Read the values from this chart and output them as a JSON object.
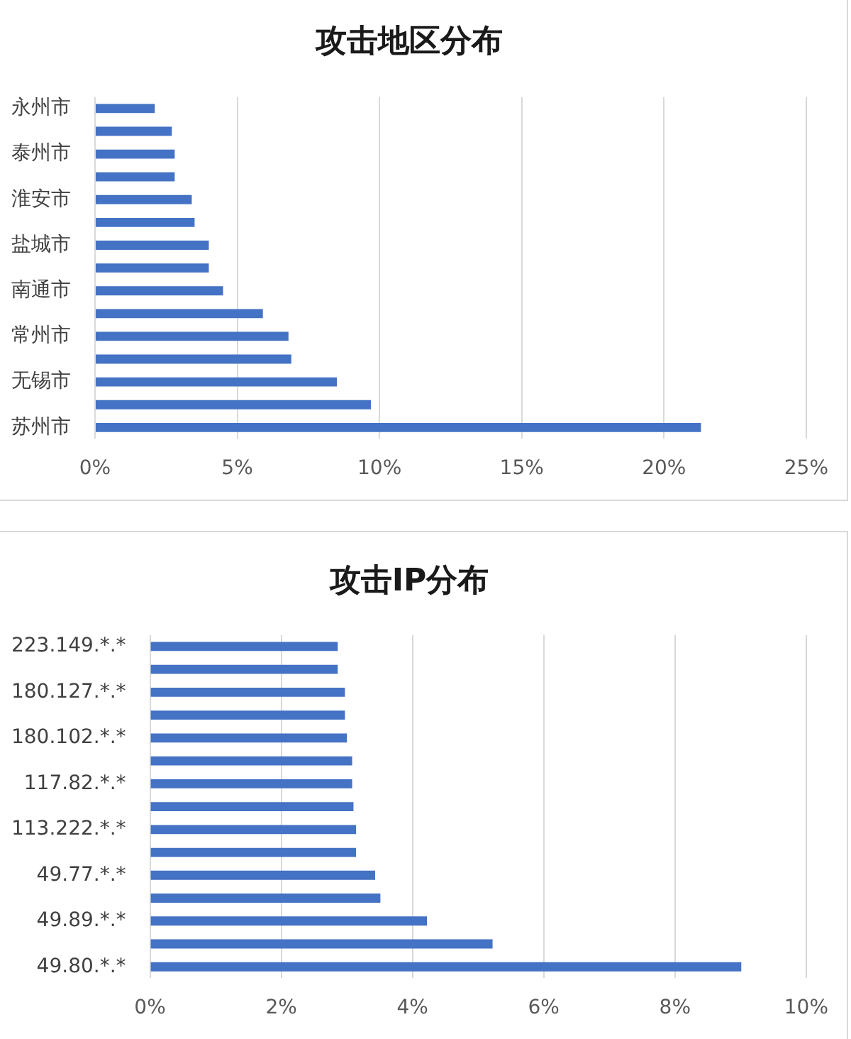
{
  "chart_data": [
    {
      "type": "bar",
      "orientation": "horizontal",
      "title": "攻击地区分布",
      "categories": [
        "永州市",
        null,
        "泰州市",
        null,
        "淮安市",
        null,
        "盐城市",
        null,
        "南通市",
        null,
        "常州市",
        null,
        "无锡市",
        null,
        "苏州市"
      ],
      "values": [
        2.1,
        2.7,
        2.8,
        2.8,
        3.4,
        3.5,
        4.0,
        4.0,
        4.5,
        5.9,
        6.8,
        6.9,
        8.5,
        9.7,
        21.3
      ],
      "color": "#4472c4",
      "xlim": [
        0,
        25
      ],
      "xticks": [
        {
          "value": 0,
          "label": "0%"
        },
        {
          "value": 5,
          "label": "5%"
        },
        {
          "value": 10,
          "label": "10%"
        },
        {
          "value": 15,
          "label": "15%"
        },
        {
          "value": 20,
          "label": "20%"
        },
        {
          "value": 25,
          "label": "25%"
        }
      ],
      "grid": "x"
    },
    {
      "type": "bar",
      "orientation": "horizontal",
      "title": "攻击IP分布",
      "categories": [
        "223.149.*.*",
        null,
        "180.127.*.*",
        null,
        "180.102.*.*",
        null,
        "117.82.*.*",
        null,
        "113.222.*.*",
        null,
        "49.77.*.*",
        null,
        "49.89.*.*",
        null,
        "49.80.*.*"
      ],
      "values": [
        2.86,
        2.86,
        2.97,
        2.97,
        3.0,
        3.08,
        3.08,
        3.1,
        3.14,
        3.14,
        3.43,
        3.51,
        4.22,
        5.22,
        9.01
      ],
      "color": "#4472c4",
      "xlim": [
        0,
        10
      ],
      "xticks": [
        {
          "value": 0,
          "label": "0%"
        },
        {
          "value": 2,
          "label": "2%"
        },
        {
          "value": 4,
          "label": "4%"
        },
        {
          "value": 6,
          "label": "6%"
        },
        {
          "value": 8,
          "label": "8%"
        },
        {
          "value": 10,
          "label": "10%"
        }
      ],
      "grid": "x"
    }
  ]
}
